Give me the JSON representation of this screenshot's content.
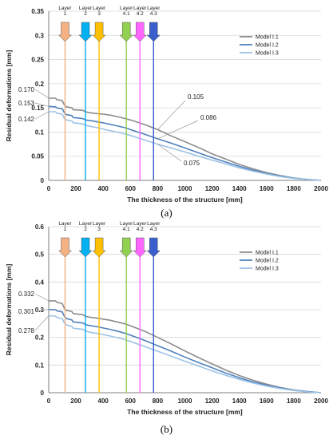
{
  "chart_data": [
    {
      "type": "line",
      "xlabel": "The thickness of the structure [mm]",
      "ylabel": "Residual deformations [mm]",
      "xlim": [
        0,
        2000
      ],
      "ylim": [
        0,
        0.35
      ],
      "xticks": [
        "0",
        "200",
        "400",
        "600",
        "800",
        "1000",
        "1200",
        "1400",
        "1600",
        "1800",
        "2000"
      ],
      "yticks": [
        "0",
        "0.05",
        "0.1",
        "0.15",
        "0.2",
        "0.25",
        "0.3",
        "0.35"
      ],
      "legend": "top-right",
      "grid": "horizontal",
      "series": [
        {
          "name": "Model I.1",
          "color": "#8c8c8c",
          "x": [
            0,
            50,
            60,
            100,
            115,
            130,
            170,
            180,
            250,
            270,
            300,
            360,
            400,
            450,
            500,
            560,
            600,
            700,
            800,
            900,
            1000,
            1100,
            1200,
            1300,
            1400,
            1500,
            1600,
            1700,
            1800,
            1900,
            2000
          ],
          "y": [
            0.17,
            0.17,
            0.167,
            0.165,
            0.156,
            0.152,
            0.15,
            0.146,
            0.145,
            0.142,
            0.14,
            0.138,
            0.137,
            0.135,
            0.132,
            0.128,
            0.125,
            0.116,
            0.105,
            0.092,
            0.08,
            0.068,
            0.055,
            0.044,
            0.033,
            0.024,
            0.016,
            0.01,
            0.005,
            0.002,
            0.0
          ]
        },
        {
          "name": "Model I.2",
          "color": "#4f81bd",
          "x": [
            0,
            50,
            60,
            100,
            115,
            130,
            170,
            180,
            250,
            270,
            300,
            360,
            400,
            450,
            500,
            560,
            600,
            700,
            800,
            900,
            1000,
            1100,
            1200,
            1300,
            1400,
            1500,
            1600,
            1700,
            1800,
            1900,
            2000
          ],
          "y": [
            0.153,
            0.152,
            0.15,
            0.148,
            0.14,
            0.136,
            0.134,
            0.13,
            0.128,
            0.125,
            0.124,
            0.121,
            0.119,
            0.116,
            0.113,
            0.109,
            0.105,
            0.096,
            0.086,
            0.077,
            0.067,
            0.057,
            0.047,
            0.038,
            0.029,
            0.021,
            0.014,
            0.009,
            0.005,
            0.002,
            0.0
          ]
        },
        {
          "name": "Model I.3",
          "color": "#9dc3e6",
          "x": [
            0,
            50,
            60,
            100,
            115,
            130,
            170,
            180,
            250,
            270,
            300,
            360,
            400,
            450,
            500,
            560,
            600,
            700,
            800,
            900,
            1000,
            1100,
            1200,
            1300,
            1400,
            1500,
            1600,
            1700,
            1800,
            1900,
            2000
          ],
          "y": [
            0.142,
            0.142,
            0.139,
            0.137,
            0.128,
            0.125,
            0.123,
            0.119,
            0.117,
            0.114,
            0.112,
            0.109,
            0.106,
            0.103,
            0.1,
            0.096,
            0.093,
            0.084,
            0.075,
            0.067,
            0.059,
            0.05,
            0.042,
            0.034,
            0.026,
            0.019,
            0.013,
            0.008,
            0.004,
            0.002,
            0.0
          ]
        }
      ],
      "y_start_labels": [
        "0.170",
        "0.153",
        "0.142"
      ],
      "annotations": [
        {
          "text": "0.105",
          "x": 800,
          "y": 0.105
        },
        {
          "text": "0.086",
          "x": 800,
          "y": 0.086
        },
        {
          "text": "0.075",
          "x": 800,
          "y": 0.075
        }
      ],
      "layers": [
        {
          "label": "Layer\n1",
          "x": 120,
          "color": "#f4b183"
        },
        {
          "label": "Layer\n2",
          "x": 270,
          "color": "#00b0f0"
        },
        {
          "label": "Layer\n3",
          "x": 370,
          "color": "#ffc000"
        },
        {
          "label": "Layer\n4.1",
          "x": 570,
          "color": "#92d050"
        },
        {
          "label": "Layer\n4.2",
          "x": 670,
          "color": "#ff66ff"
        },
        {
          "label": "Layer\n4.3",
          "x": 770,
          "color": "#3a5fcd"
        }
      ],
      "caption": "(a)"
    },
    {
      "type": "line",
      "xlabel": "The thickness of the structure [mm]",
      "ylabel": "Residual deformations [mm]",
      "xlim": [
        0,
        2000
      ],
      "ylim": [
        0,
        0.6
      ],
      "xticks": [
        "0",
        "200",
        "400",
        "600",
        "800",
        "1000",
        "1200",
        "1400",
        "1600",
        "1800",
        "2000"
      ],
      "yticks": [
        "0",
        "0.1",
        "0.2",
        "0.3",
        "0.4",
        "0.5",
        "0.6"
      ],
      "legend": "top-right",
      "grid": "horizontal",
      "series": [
        {
          "name": "Model I.1",
          "color": "#8c8c8c",
          "x": [
            0,
            50,
            60,
            100,
            115,
            130,
            170,
            180,
            250,
            270,
            300,
            360,
            400,
            450,
            500,
            560,
            600,
            700,
            800,
            900,
            1000,
            1100,
            1200,
            1300,
            1400,
            1500,
            1600,
            1700,
            1800,
            1900,
            2000
          ],
          "y": [
            0.332,
            0.332,
            0.327,
            0.322,
            0.305,
            0.298,
            0.293,
            0.286,
            0.282,
            0.276,
            0.273,
            0.269,
            0.266,
            0.262,
            0.256,
            0.249,
            0.242,
            0.223,
            0.2,
            0.176,
            0.151,
            0.127,
            0.104,
            0.082,
            0.062,
            0.045,
            0.031,
            0.019,
            0.01,
            0.004,
            0.0
          ]
        },
        {
          "name": "Model I.2",
          "color": "#4f81bd",
          "x": [
            0,
            50,
            60,
            100,
            115,
            130,
            170,
            180,
            250,
            270,
            300,
            360,
            400,
            450,
            500,
            560,
            600,
            700,
            800,
            900,
            1000,
            1100,
            1200,
            1300,
            1400,
            1500,
            1600,
            1700,
            1800,
            1900,
            2000
          ],
          "y": [
            0.301,
            0.3,
            0.296,
            0.292,
            0.276,
            0.268,
            0.263,
            0.256,
            0.252,
            0.246,
            0.243,
            0.238,
            0.234,
            0.229,
            0.223,
            0.215,
            0.208,
            0.19,
            0.17,
            0.15,
            0.129,
            0.109,
            0.09,
            0.071,
            0.054,
            0.039,
            0.027,
            0.017,
            0.009,
            0.004,
            0.0
          ]
        },
        {
          "name": "Model I.3",
          "color": "#9dc3e6",
          "x": [
            0,
            50,
            60,
            100,
            115,
            130,
            170,
            180,
            250,
            270,
            300,
            360,
            400,
            450,
            500,
            560,
            600,
            700,
            800,
            900,
            1000,
            1100,
            1200,
            1300,
            1400,
            1500,
            1600,
            1700,
            1800,
            1900,
            2000
          ],
          "y": [
            0.278,
            0.277,
            0.272,
            0.268,
            0.252,
            0.245,
            0.24,
            0.233,
            0.229,
            0.223,
            0.219,
            0.214,
            0.21,
            0.205,
            0.199,
            0.192,
            0.185,
            0.168,
            0.15,
            0.132,
            0.114,
            0.096,
            0.079,
            0.063,
            0.048,
            0.035,
            0.024,
            0.015,
            0.008,
            0.003,
            0.0
          ]
        }
      ],
      "y_start_labels": [
        "0.332",
        "0.301",
        "0.278"
      ],
      "annotations": [],
      "layers": [
        {
          "label": "Layer\n1",
          "x": 120,
          "color": "#f4b183"
        },
        {
          "label": "Layer\n2",
          "x": 270,
          "color": "#00b0f0"
        },
        {
          "label": "Layer\n3",
          "x": 370,
          "color": "#ffc000"
        },
        {
          "label": "Layer\n4.1",
          "x": 570,
          "color": "#92d050"
        },
        {
          "label": "Layer\n4.2",
          "x": 670,
          "color": "#ff66ff"
        },
        {
          "label": "Layer\n4.3",
          "x": 770,
          "color": "#3a5fcd"
        }
      ],
      "caption": "(b)"
    }
  ]
}
